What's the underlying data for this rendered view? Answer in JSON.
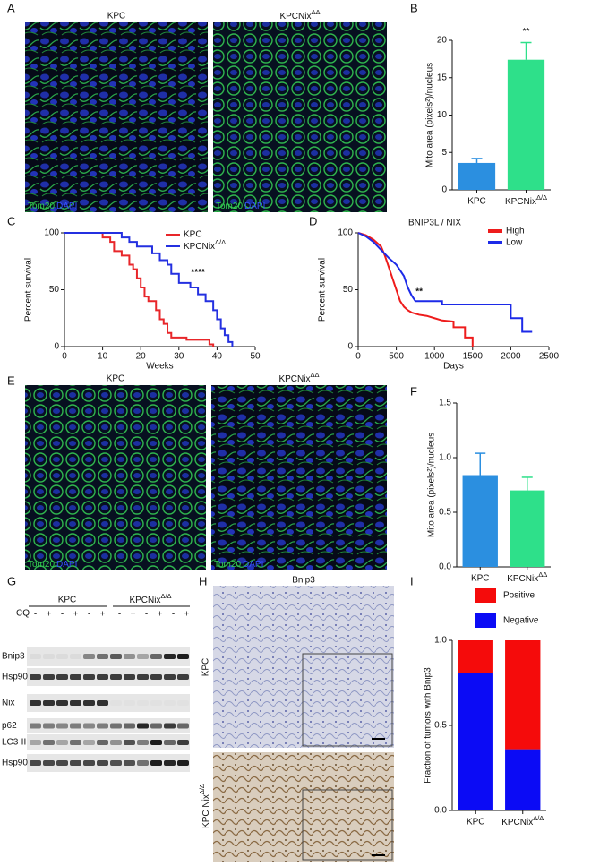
{
  "panel_labels": [
    "A",
    "B",
    "C",
    "D",
    "E",
    "F",
    "G",
    "H",
    "I"
  ],
  "figure_a": {
    "titles": [
      "KPC",
      {
        "text": "KPCNix",
        "sup": "ΔΔ"
      }
    ],
    "stain": [
      "Tom20",
      "DAPI"
    ]
  },
  "figure_e": {
    "titles": [
      "KPC",
      {
        "text": "KPCNix",
        "sup": "ΔΔ"
      }
    ],
    "stain": [
      "Tom20",
      "DAPI"
    ]
  },
  "blot": {
    "groups": [
      "KPC",
      {
        "text": "KPCNix",
        "sup": "Δ/Δ"
      }
    ],
    "treatment": "CQ",
    "cq_signs": [
      "-",
      "+",
      "-",
      "+",
      "-",
      "+",
      "-",
      "+",
      "-",
      "+",
      "-",
      "+"
    ],
    "rows": [
      "Bnip3",
      "Hsp90",
      "Nix",
      "p62",
      "LC3-II",
      "Hsp90"
    ]
  },
  "ihc": {
    "title": "Bnip3",
    "rows": [
      "KPC",
      {
        "text": "KPC Nix",
        "sup": "Δ/Δ"
      }
    ]
  },
  "chart_data": [
    {
      "type": "bar",
      "ylabel": "Mito area (pixels²)/nucleus",
      "categories": [
        "KPC",
        {
          "text": "KPCNix",
          "sup": "Δ/Δ"
        }
      ],
      "values": [
        3.6,
        17.4
      ],
      "errors": [
        0.6,
        2.3
      ],
      "colors": [
        "#2b8fe0",
        "#2ee08a"
      ],
      "ylim": [
        0,
        20
      ],
      "yticks": [
        0,
        5,
        10,
        15,
        20
      ],
      "annotation": "**"
    },
    {
      "type": "line",
      "xlabel": "Weeks",
      "ylabel": "Percent survival",
      "annotation": "****",
      "xlim": [
        0,
        50
      ],
      "xticks": [
        0,
        10,
        20,
        30,
        40,
        50
      ],
      "ylim": [
        0,
        100
      ],
      "yticks": [
        0,
        50,
        100
      ],
      "series": [
        {
          "name": "KPC",
          "color": "#e8262a",
          "x": [
            0,
            10,
            10,
            12,
            12,
            13,
            13,
            15,
            15,
            17,
            17,
            18,
            18,
            19,
            19,
            20,
            20,
            21,
            21,
            22,
            22,
            24,
            24,
            25,
            25,
            26,
            26,
            27,
            27,
            28,
            28,
            32,
            32,
            38,
            38,
            39,
            39
          ],
          "values": [
            100,
            100,
            96,
            96,
            92,
            92,
            84,
            84,
            80,
            80,
            72,
            72,
            68,
            68,
            60,
            60,
            52,
            52,
            44,
            44,
            40,
            40,
            32,
            32,
            24,
            24,
            20,
            20,
            12,
            12,
            8,
            8,
            6,
            6,
            2,
            2,
            0
          ]
        },
        {
          "name": {
            "text": "KPCNix",
            "sup": "Δ/Δ"
          },
          "color": "#2430e0",
          "x": [
            0,
            15,
            15,
            17,
            17,
            19,
            19,
            23,
            23,
            25,
            25,
            27,
            27,
            28,
            28,
            30,
            30,
            33,
            33,
            35,
            35,
            37,
            37,
            39,
            39,
            40,
            40,
            41,
            41,
            42,
            42,
            43,
            43,
            44,
            44
          ],
          "values": [
            100,
            100,
            96,
            96,
            92,
            92,
            88,
            88,
            82,
            82,
            76,
            76,
            72,
            72,
            64,
            64,
            56,
            56,
            52,
            52,
            46,
            46,
            40,
            40,
            32,
            32,
            24,
            24,
            16,
            16,
            10,
            10,
            4,
            4,
            0
          ]
        }
      ]
    },
    {
      "type": "line",
      "title": "BNIP3L / NIX",
      "xlabel": "Days",
      "ylabel": "Percent survival",
      "annotation": "**",
      "xlim": [
        0,
        2500
      ],
      "xticks": [
        0,
        500,
        1000,
        1500,
        2000,
        2500
      ],
      "ylim": [
        0,
        100
      ],
      "yticks": [
        0,
        50,
        100
      ],
      "series": [
        {
          "name": "High",
          "color": "#ee1c1c",
          "x": [
            0,
            100,
            200,
            300,
            350,
            400,
            450,
            500,
            550,
            600,
            650,
            700,
            800,
            900,
            1000,
            1100,
            1250,
            1250,
            1400,
            1400,
            1500,
            1500
          ],
          "values": [
            100,
            98,
            94,
            88,
            80,
            70,
            60,
            50,
            40,
            35,
            32,
            30,
            28,
            27,
            25,
            23,
            22,
            17,
            17,
            8,
            8,
            0
          ]
        },
        {
          "name": "Low",
          "color": "#1c2ae8",
          "x": [
            0,
            100,
            200,
            300,
            400,
            500,
            600,
            650,
            700,
            750,
            800,
            1100,
            1100,
            2000,
            2000,
            2150,
            2150,
            2280
          ],
          "values": [
            100,
            97,
            92,
            85,
            78,
            72,
            62,
            52,
            45,
            40,
            40,
            40,
            37,
            37,
            25,
            25,
            13,
            13
          ]
        }
      ]
    },
    {
      "type": "bar",
      "ylabel": "Mito area (pixels²)/nucleus",
      "categories": [
        "KPC",
        {
          "text": "KPCNix",
          "sup": "ΔΔ"
        }
      ],
      "values": [
        0.84,
        0.7
      ],
      "errors": [
        0.2,
        0.12
      ],
      "colors": [
        "#2b8fe0",
        "#2ee08a"
      ],
      "ylim": [
        0,
        1.5
      ],
      "yticks": [
        {
          "value": 0,
          "label": "0.0"
        },
        {
          "value": 0.5,
          "label": "0.5"
        },
        {
          "value": 1,
          "label": "1.0"
        },
        {
          "value": 1.5,
          "label": "1.5"
        }
      ]
    },
    {
      "type": "stacked",
      "ylabel": "Fraction of tumors with Bnip3",
      "categories": [
        "KPC",
        {
          "text": "KPCNix",
          "sup": "Δ/Δ"
        }
      ],
      "ylim": [
        0,
        1
      ],
      "yticks": [
        {
          "value": 0,
          "label": "0.0"
        },
        0.5,
        {
          "value": 1,
          "label": "1.0"
        }
      ],
      "series": [
        {
          "name": "Negative",
          "color": "#0b0bf5",
          "values": [
            0.81,
            0.36
          ]
        },
        {
          "name": "Positive",
          "color": "#f50b0b",
          "values": [
            0.19,
            0.64
          ]
        }
      ]
    }
  ]
}
